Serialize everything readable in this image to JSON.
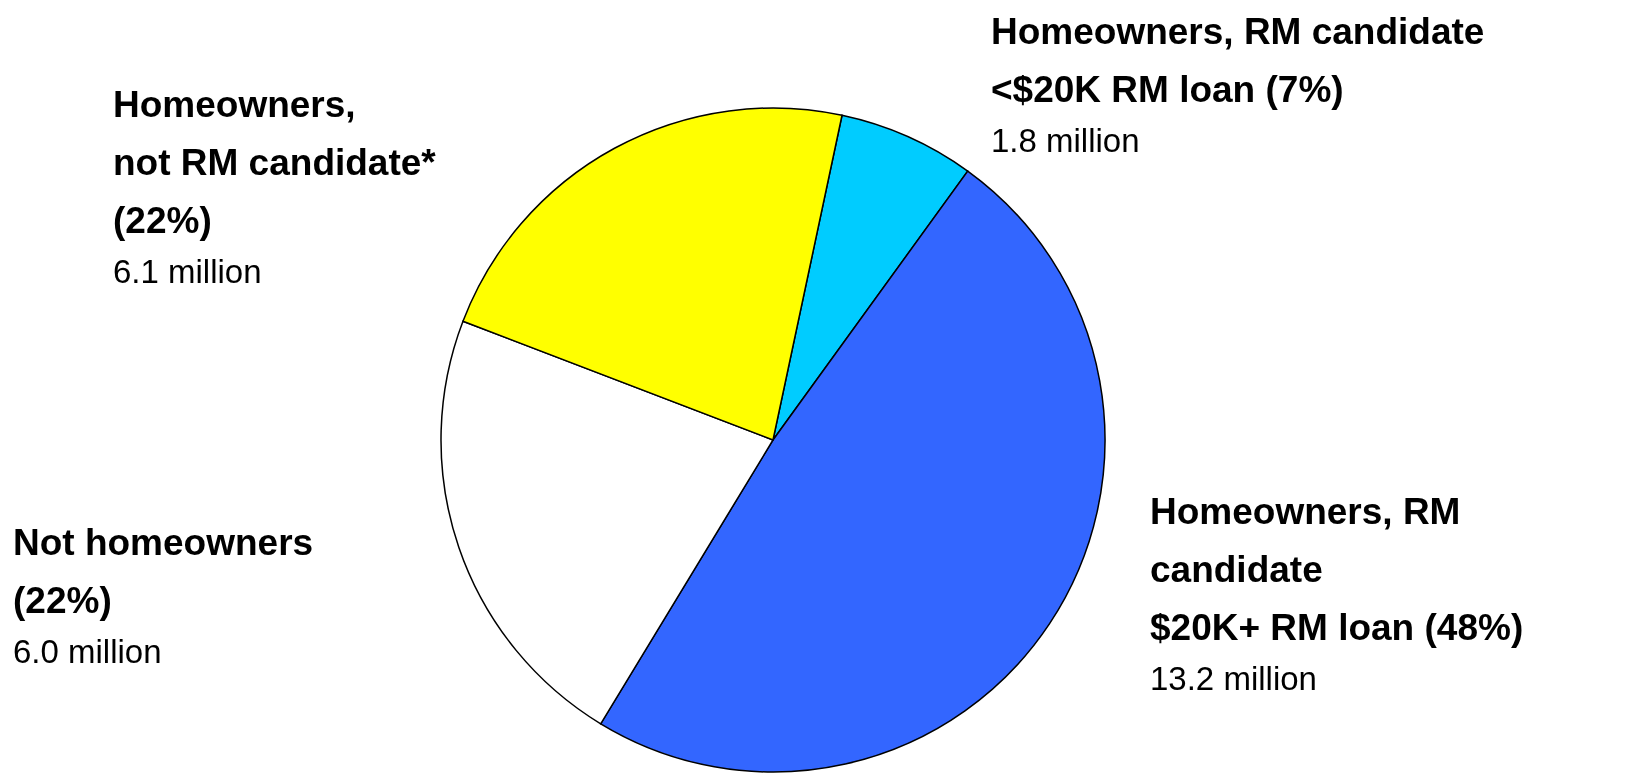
{
  "chart_data": {
    "type": "pie",
    "categories": [
      "Homeowners, RM candidate\n<$20K RM loan (7%)",
      "Homeowners, RM\ncandidate\n$20K+ RM loan (48%)",
      "Not homeowners\n(22%)",
      "Homeowners,\nnot RM candidate*\n(22%)"
    ],
    "values": [
      1.8,
      13.2,
      6.0,
      6.1
    ],
    "value_labels": [
      "1.8 million",
      "13.2 million",
      "6.0 million",
      "6.1 million"
    ],
    "colors": [
      "#00ccff",
      "#3366ff",
      "#ffffff",
      "#ffff00"
    ]
  }
}
